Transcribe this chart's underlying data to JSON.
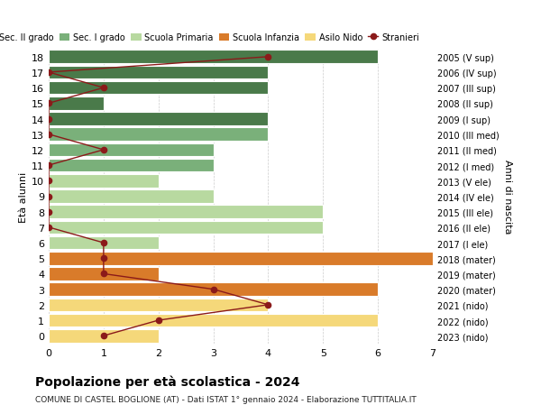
{
  "ages": [
    18,
    17,
    16,
    15,
    14,
    13,
    12,
    11,
    10,
    9,
    8,
    7,
    6,
    5,
    4,
    3,
    2,
    1,
    0
  ],
  "right_labels": [
    "2005 (V sup)",
    "2006 (IV sup)",
    "2007 (III sup)",
    "2008 (II sup)",
    "2009 (I sup)",
    "2010 (III med)",
    "2011 (II med)",
    "2012 (I med)",
    "2013 (V ele)",
    "2014 (IV ele)",
    "2015 (III ele)",
    "2016 (II ele)",
    "2017 (I ele)",
    "2018 (mater)",
    "2019 (mater)",
    "2020 (mater)",
    "2021 (nido)",
    "2022 (nido)",
    "2023 (nido)"
  ],
  "bar_values": [
    6,
    4,
    4,
    1,
    4,
    4,
    3,
    3,
    2,
    3,
    5,
    5,
    2,
    7,
    2,
    6,
    4,
    6,
    2
  ],
  "bar_colors": [
    "#4a7a4a",
    "#4a7a4a",
    "#4a7a4a",
    "#4a7a4a",
    "#4a7a4a",
    "#7ab07a",
    "#7ab07a",
    "#7ab07a",
    "#b8d9a0",
    "#b8d9a0",
    "#b8d9a0",
    "#b8d9a0",
    "#b8d9a0",
    "#d97b2a",
    "#d97b2a",
    "#d97b2a",
    "#f5d87a",
    "#f5d87a",
    "#f5d87a"
  ],
  "stranieri_values": [
    4,
    0,
    1,
    0,
    0,
    0,
    1,
    0,
    0,
    0,
    0,
    0,
    1,
    1,
    1,
    3,
    4,
    2,
    1
  ],
  "title": "Popolazione per età scolastica - 2024",
  "subtitle": "COMUNE DI CASTEL BOGLIONE (AT) - Dati ISTAT 1° gennaio 2024 - Elaborazione TUTTITALIA.IT",
  "ylabel_left": "Età alunni",
  "ylabel_right": "Anni di nascita",
  "legend_labels": [
    "Sec. II grado",
    "Sec. I grado",
    "Scuola Primaria",
    "Scuola Infanzia",
    "Asilo Nido",
    "Stranieri"
  ],
  "legend_colors": [
    "#4a7a4a",
    "#7ab07a",
    "#b8d9a0",
    "#d97b2a",
    "#f5d87a",
    "#cc2200"
  ],
  "color_stranieri": "#8b1a1a",
  "bg_color": "#ffffff",
  "xlim": [
    0,
    7
  ],
  "bar_height": 0.85
}
